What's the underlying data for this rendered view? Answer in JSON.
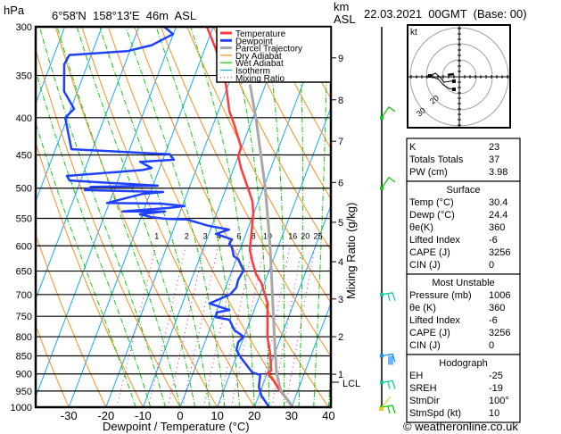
{
  "header": {
    "unit_left": "hPa",
    "location": "6°58'N  158°13'E  46m  ASL",
    "unit_right_1": "km",
    "unit_right_2": "ASL",
    "datetime": "22.03.2021  00GMT  (Base: 00)"
  },
  "legend": [
    {
      "label": "Temperature",
      "color": "#ff3a3a",
      "style": "solid"
    },
    {
      "label": "Dewpoint",
      "color": "#2040ff",
      "style": "solid"
    },
    {
      "label": "Parcel Trajectory",
      "color": "#a8a8a8",
      "style": "solid"
    },
    {
      "label": "Dry Adiabat",
      "color": "#ff8c1a",
      "style": "thin"
    },
    {
      "label": "Wet Adiabat",
      "color": "#10cc10",
      "style": "thin"
    },
    {
      "label": "Isotherm",
      "color": "#10a8ff",
      "style": "thin"
    },
    {
      "label": "Mixing Ratio",
      "color": "#ff1493",
      "style": "dotted"
    }
  ],
  "chart_data": {
    "type": "skew-t",
    "xlabel": "Dewpoint / Temperature (°C)",
    "ylabel_left": "hPa",
    "ylabel_right": "Mixing Ratio (g/kg)",
    "xlim": [
      -40,
      40
    ],
    "ylim_hpa": [
      1000,
      300
    ],
    "y_scale": "log",
    "x_ticks": [
      -30,
      -20,
      -10,
      0,
      10,
      20,
      30,
      40
    ],
    "pressure_ticks": [
      300,
      350,
      400,
      450,
      500,
      550,
      600,
      650,
      700,
      750,
      800,
      850,
      900,
      950,
      1000
    ],
    "km_ticks": [
      {
        "label": "1",
        "p": 901
      },
      {
        "label": "2",
        "p": 800
      },
      {
        "label": "3",
        "p": 710
      },
      {
        "label": "4",
        "p": 631
      },
      {
        "label": "5",
        "p": 557
      },
      {
        "label": "6",
        "p": 491
      },
      {
        "label": "7",
        "p": 431
      },
      {
        "label": "8",
        "p": 378
      },
      {
        "label": "9",
        "p": 331
      }
    ],
    "lcl": {
      "label": "LCL",
      "p": 924
    },
    "mixing_ratio_labels": [
      "1",
      "2",
      "3",
      "4",
      "6",
      "8",
      "10",
      "16",
      "20",
      "25"
    ],
    "series": [
      {
        "name": "Temperature",
        "color": "#ff3a3a",
        "points": [
          [
            300,
            -31.7
          ],
          [
            322,
            -27.0
          ],
          [
            360,
            -20.7
          ],
          [
            392,
            -17.0
          ],
          [
            407,
            -14.6
          ],
          [
            439,
            -10.2
          ],
          [
            452,
            -10.0
          ],
          [
            469,
            -8.1
          ],
          [
            496,
            -4.6
          ],
          [
            521,
            -1.6
          ],
          [
            540,
            -0.2
          ],
          [
            571,
            1.2
          ],
          [
            608,
            2.7
          ],
          [
            631,
            4.6
          ],
          [
            656,
            6.8
          ],
          [
            675,
            9.2
          ],
          [
            700,
            11.3
          ],
          [
            720,
            13.0
          ],
          [
            800,
            16.3
          ],
          [
            846,
            18.9
          ],
          [
            891,
            20.8
          ],
          [
            898,
            20.1
          ],
          [
            921,
            22.6
          ],
          [
            942,
            24.5
          ],
          [
            1000,
            30.4
          ]
        ]
      },
      {
        "name": "Dewpoint",
        "color": "#2040ff",
        "points": [
          [
            300,
            -43.2
          ],
          [
            307,
            -40.1
          ],
          [
            318,
            -44.7
          ],
          [
            324,
            -50.6
          ],
          [
            328,
            -65.9
          ],
          [
            338,
            -66.3
          ],
          [
            368,
            -63.6
          ],
          [
            389,
            -59.1
          ],
          [
            400,
            -60.6
          ],
          [
            442,
            -55.7
          ],
          [
            449,
            -28.7
          ],
          [
            457,
            -27.0
          ],
          [
            460,
            -35.9
          ],
          [
            469,
            -32.2
          ],
          [
            472,
            -34.4
          ],
          [
            481,
            -54.2
          ],
          [
            488,
            -53.0
          ],
          [
            493,
            -37.7
          ],
          [
            496,
            -28.7
          ],
          [
            498,
            -46.4
          ],
          [
            503,
            -47.9
          ],
          [
            506,
            -26.6
          ],
          [
            509,
            -31.9
          ],
          [
            524,
            -40.6
          ],
          [
            525,
            -26.1
          ],
          [
            529,
            -19.4
          ],
          [
            532,
            -23.2
          ],
          [
            538,
            -35.6
          ],
          [
            538,
            -24.1
          ],
          [
            543,
            -30.6
          ],
          [
            548,
            -27.1
          ],
          [
            551,
            -22.9
          ],
          [
            552,
            -17.3
          ],
          [
            563,
            -11.1
          ],
          [
            570,
            -5.0
          ],
          [
            578,
            -8.1
          ],
          [
            588,
            -3.2
          ],
          [
            596,
            -3.5
          ],
          [
            603,
            -2.4
          ],
          [
            620,
            -1.0
          ],
          [
            626,
            0.5
          ],
          [
            649,
            3.1
          ],
          [
            668,
            2.6
          ],
          [
            685,
            2.9
          ],
          [
            700,
            1.9
          ],
          [
            720,
            -2.7
          ],
          [
            735,
            3.3
          ],
          [
            741,
            0.2
          ],
          [
            752,
            0.4
          ],
          [
            758,
            4.3
          ],
          [
            784,
            6.8
          ],
          [
            800,
            9.9
          ],
          [
            814,
            9.0
          ],
          [
            834,
            9.3
          ],
          [
            854,
            11.2
          ],
          [
            896,
            15.9
          ],
          [
            903,
            18.3
          ],
          [
            937,
            19.1
          ],
          [
            964,
            20.7
          ],
          [
            1000,
            24.0
          ]
        ]
      },
      {
        "name": "Parcel Trajectory",
        "color": "#a8a8a8",
        "points": [
          [
            360,
            -14.2
          ],
          [
            400,
            -9.2
          ],
          [
            496,
            0.2
          ],
          [
            580,
            6.4
          ],
          [
            613,
            8.5
          ],
          [
            814,
            18.8
          ],
          [
            898,
            22.5
          ],
          [
            948,
            25.4
          ],
          [
            1000,
            30.4
          ]
        ]
      }
    ]
  },
  "wind_barbs": [
    {
      "p": 400,
      "color": "#10cc10",
      "shape": "up"
    },
    {
      "p": 500,
      "color": "#10cc10",
      "shape": "up"
    },
    {
      "p": 700,
      "color": "#10c8a0",
      "shape": "flat"
    },
    {
      "p": 850,
      "color": "#1890ff",
      "shape": "flat3"
    },
    {
      "p": 925,
      "color": "#10c8a0",
      "shape": "flat"
    },
    {
      "p": 1000,
      "color": "#10cc10",
      "shape": "flat"
    }
  ],
  "hodograph": {
    "unit": "kt",
    "ring_labels": [
      "20",
      "30"
    ],
    "trace_uv": [
      [
        -3.2,
        -7.4
      ],
      [
        -6.3,
        -6.8
      ],
      [
        -9.5,
        -4.7
      ],
      [
        -12.1,
        -1.6
      ],
      [
        -17.4,
        0.5
      ],
      [
        -14.2,
        2.1
      ],
      [
        -11.6,
        0
      ],
      [
        -8.9,
        -3.2
      ],
      [
        -5.3,
        -2.6
      ],
      [
        -3.2,
        -2.6
      ]
    ],
    "storm_uv": [
      [
        -6.8,
        1.1
      ],
      [
        -3.2,
        1.6
      ]
    ]
  },
  "indices": {
    "rows": [
      {
        "label": "K",
        "value": "23"
      },
      {
        "label": "Totals Totals",
        "value": "37"
      },
      {
        "label": "PW (cm)",
        "value": "3.98"
      }
    ]
  },
  "surface": {
    "title": "Surface",
    "rows": [
      {
        "label": "Temp (°C)",
        "value": "30.4"
      },
      {
        "label": "Dewp (°C)",
        "value": "24.4"
      },
      {
        "label": "θe(K)",
        "value": "360"
      },
      {
        "label": "Lifted Index",
        "value": "-6"
      },
      {
        "label": "CAPE (J)",
        "value": "3256"
      },
      {
        "label": "CIN (J)",
        "value": "0"
      }
    ]
  },
  "most_unstable": {
    "title": "Most Unstable",
    "rows": [
      {
        "label": "Pressure (mb)",
        "value": "1006"
      },
      {
        "label": "θe (K)",
        "value": "360"
      },
      {
        "label": "Lifted Index",
        "value": "-6"
      },
      {
        "label": "CAPE (J)",
        "value": "3256"
      },
      {
        "label": "CIN (J)",
        "value": "0"
      }
    ]
  },
  "hodo_table": {
    "title": "Hodograph",
    "rows": [
      {
        "label": "EH",
        "value": "-25"
      },
      {
        "label": "SREH",
        "value": "-19"
      },
      {
        "label": "StmDir",
        "value": "100°"
      },
      {
        "label": "StmSpd (kt)",
        "value": "10"
      }
    ]
  },
  "footer": {
    "copyright": "© weatheronline.co.uk"
  }
}
